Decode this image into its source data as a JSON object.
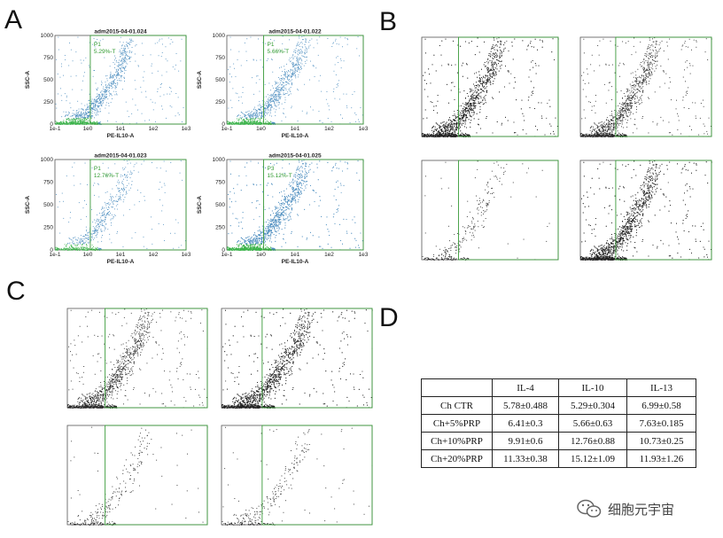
{
  "panels": {
    "a": "A",
    "b": "B",
    "c": "C",
    "d": "D"
  },
  "chart_data": [
    {
      "type": "scatter",
      "panel": "A",
      "position": "top-left",
      "title": "adm2015-04-01.024",
      "xlabel": "PE-IL10-A",
      "ylabel": "SSC-A",
      "x_scale": "log",
      "xlim": [
        0.1,
        1000
      ],
      "ylim": [
        0,
        1000
      ],
      "x_ticks": [
        "1e-1",
        "1e0",
        "1e1",
        "1e2",
        "1e3"
      ],
      "y_ticks": [
        "0",
        "250",
        "500",
        "750",
        "1000"
      ],
      "gate": {
        "name": "P1",
        "value": "5.29%-T",
        "x_min": 1.2
      },
      "point_color": "#4f8fc0",
      "density": "medium"
    },
    {
      "type": "scatter",
      "panel": "A",
      "position": "top-right",
      "title": "adm2015-04-01.022",
      "xlabel": "PE-IL10-A",
      "ylabel": "SSC-A",
      "x_scale": "log",
      "xlim": [
        0.1,
        1000
      ],
      "ylim": [
        0,
        1000
      ],
      "x_ticks": [
        "1e-1",
        "1e0",
        "1e1",
        "1e2",
        "1e3"
      ],
      "y_ticks": [
        "0",
        "250",
        "500",
        "750",
        "1000"
      ],
      "gate": {
        "name": "P1",
        "value": "5.66%-T",
        "x_min": 1.2
      },
      "point_color": "#4f8fc0",
      "density": "medium"
    },
    {
      "type": "scatter",
      "panel": "A",
      "position": "bottom-left",
      "title": "adm2015-04-01.023",
      "xlabel": "PE-IL10-A",
      "ylabel": "SSC-A",
      "x_scale": "log",
      "xlim": [
        0.1,
        1000
      ],
      "ylim": [
        0,
        1000
      ],
      "x_ticks": [
        "1e-1",
        "1e0",
        "1e1",
        "1e2",
        "1e3"
      ],
      "y_ticks": [
        "0",
        "250",
        "500",
        "750",
        "1000"
      ],
      "gate": {
        "name": "P1",
        "value": "12.76%-T",
        "x_min": 1.2
      },
      "point_color": "#4f8fc0",
      "density": "low"
    },
    {
      "type": "scatter",
      "panel": "A",
      "position": "bottom-right",
      "title": "adm2015-04-01.025",
      "xlabel": "PE-IL10-A",
      "ylabel": "SSC-A",
      "x_scale": "log",
      "xlim": [
        0.1,
        1000
      ],
      "ylim": [
        0,
        1000
      ],
      "x_ticks": [
        "1e-1",
        "1e0",
        "1e1",
        "1e2",
        "1e3"
      ],
      "y_ticks": [
        "0",
        "250",
        "500",
        "750",
        "1000"
      ],
      "gate": {
        "name": "P3",
        "value": "15.12%-T",
        "x_min": 1.2
      },
      "point_color": "#4f8fc0",
      "density": "high"
    },
    {
      "type": "scatter",
      "panel": "B",
      "position": "top-left",
      "x_scale": "log",
      "xlim": [
        0.1,
        1000
      ],
      "ylim": [
        0,
        1000
      ],
      "gate": {
        "x_min": 1.2
      },
      "point_color": "#222222",
      "density": "high"
    },
    {
      "type": "scatter",
      "panel": "B",
      "position": "top-right",
      "x_scale": "log",
      "xlim": [
        0.1,
        1000
      ],
      "ylim": [
        0,
        1000
      ],
      "gate": {
        "x_min": 1.2
      },
      "point_color": "#222222",
      "density": "medium"
    },
    {
      "type": "scatter",
      "panel": "B",
      "position": "bottom-left",
      "x_scale": "log",
      "xlim": [
        0.1,
        1000
      ],
      "ylim": [
        0,
        1000
      ],
      "gate": {
        "x_min": 1.2
      },
      "point_color": "#222222",
      "density": "sparse"
    },
    {
      "type": "scatter",
      "panel": "B",
      "position": "bottom-right",
      "x_scale": "log",
      "xlim": [
        0.1,
        1000
      ],
      "ylim": [
        0,
        1000
      ],
      "gate": {
        "x_min": 1.2
      },
      "point_color": "#222222",
      "density": "high"
    },
    {
      "type": "scatter",
      "panel": "C",
      "position": "top-left",
      "x_scale": "log",
      "xlim": [
        0.1,
        1000
      ],
      "ylim": [
        0,
        1000
      ],
      "gate": {
        "x_min": 1.2
      },
      "point_color": "#222222",
      "density": "medium"
    },
    {
      "type": "scatter",
      "panel": "C",
      "position": "top-right",
      "x_scale": "log",
      "xlim": [
        0.1,
        1000
      ],
      "ylim": [
        0,
        1000
      ],
      "gate": {
        "x_min": 1.2
      },
      "point_color": "#222222",
      "density": "high"
    },
    {
      "type": "scatter",
      "panel": "C",
      "position": "bottom-left",
      "x_scale": "log",
      "xlim": [
        0.1,
        1000
      ],
      "ylim": [
        0,
        1000
      ],
      "gate": {
        "x_min": 1.2
      },
      "point_color": "#222222",
      "density": "sparse"
    },
    {
      "type": "scatter",
      "panel": "C",
      "position": "bottom-right",
      "x_scale": "log",
      "xlim": [
        0.1,
        1000
      ],
      "ylim": [
        0,
        1000
      ],
      "gate": {
        "x_min": 1.2
      },
      "point_color": "#222222",
      "density": "sparse"
    },
    {
      "type": "table",
      "panel": "D",
      "columns": [
        "",
        "IL-4",
        "IL-10",
        "IL-13"
      ],
      "rows": [
        [
          "Ch CTR",
          "5.78±0.488",
          "5.29±0.304",
          "6.99±0.58"
        ],
        [
          "Ch+5%PRP",
          "6.41±0.3",
          "5.66±0.63",
          "7.63±0.185"
        ],
        [
          "Ch+10%PRP",
          "9.91±0.6",
          "12.76±0.88",
          "10.73±0.25"
        ],
        [
          "Ch+20%PRP",
          "11.33±0.38",
          "15.12±1.09",
          "11.93±1.26"
        ]
      ]
    }
  ],
  "watermark": {
    "text": "细胞元宇宙",
    "icon": "wechat-icon"
  }
}
